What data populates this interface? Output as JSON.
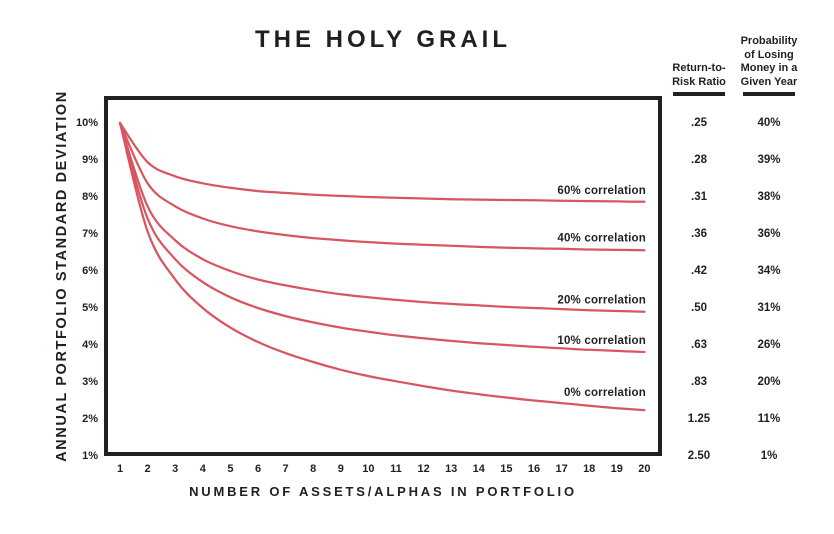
{
  "title": "THE HOLY GRAIL",
  "chart_data": {
    "type": "line",
    "title": "THE HOLY GRAIL",
    "xlabel": "NUMBER OF ASSETS/ALPHAS IN PORTFOLIO",
    "ylabel": "ANNUAL PORTFOLIO STANDARD DEVIATION",
    "x": [
      1,
      2,
      3,
      4,
      5,
      6,
      7,
      8,
      9,
      10,
      11,
      12,
      13,
      14,
      15,
      16,
      17,
      18,
      19,
      20
    ],
    "x_tick_labels": [
      "1",
      "2",
      "3",
      "4",
      "5",
      "6",
      "7",
      "8",
      "9",
      "10",
      "11",
      "12",
      "13",
      "14",
      "15",
      "16",
      "17",
      "18",
      "19",
      "20"
    ],
    "y_ticks": [
      {
        "label": "10%",
        "value": 10
      },
      {
        "label": "9%",
        "value": 9
      },
      {
        "label": "8%",
        "value": 8
      },
      {
        "label": "7%",
        "value": 7
      },
      {
        "label": "6%",
        "value": 6
      },
      {
        "label": "5%",
        "value": 5
      },
      {
        "label": "4%",
        "value": 4
      },
      {
        "label": "3%",
        "value": 3
      },
      {
        "label": "2%",
        "value": 2
      },
      {
        "label": "1%",
        "value": 1
      }
    ],
    "ylim": [
      1,
      10
    ],
    "xlim": [
      1,
      20
    ],
    "grid": false,
    "legend_position": "inline-right-of-each-line",
    "line_color": "#d8565f",
    "series": [
      {
        "name": "60% correlation",
        "correlation": 0.6,
        "label_dy": 12,
        "values": [
          10.0,
          8.94,
          8.56,
          8.37,
          8.25,
          8.16,
          8.11,
          8.06,
          8.03,
          8.0,
          7.98,
          7.96,
          7.94,
          7.93,
          7.92,
          7.91,
          7.9,
          7.89,
          7.88,
          7.87
        ]
      },
      {
        "name": "40% correlation",
        "correlation": 0.4,
        "label_dy": 13,
        "values": [
          10.0,
          8.37,
          7.75,
          7.42,
          7.21,
          7.07,
          6.97,
          6.89,
          6.83,
          6.78,
          6.74,
          6.71,
          6.68,
          6.65,
          6.63,
          6.61,
          6.6,
          6.58,
          6.57,
          6.56
        ]
      },
      {
        "name": "20% correlation",
        "correlation": 0.2,
        "label_dy": 12,
        "values": [
          10.0,
          7.75,
          6.83,
          6.32,
          6.0,
          5.77,
          5.61,
          5.48,
          5.37,
          5.29,
          5.22,
          5.16,
          5.11,
          5.07,
          5.03,
          5.0,
          4.97,
          4.94,
          4.92,
          4.9
        ]
      },
      {
        "name": "10% correlation",
        "correlation": 0.1,
        "label_dy": 12,
        "values": [
          10.0,
          7.42,
          6.32,
          5.7,
          5.29,
          5.0,
          4.78,
          4.61,
          4.47,
          4.36,
          4.26,
          4.18,
          4.11,
          4.05,
          4.0,
          3.95,
          3.91,
          3.87,
          3.84,
          3.81
        ]
      },
      {
        "name": "0% correlation",
        "correlation": 0.0,
        "label_dy": 18,
        "values": [
          10.0,
          7.07,
          5.77,
          5.0,
          4.47,
          4.08,
          3.78,
          3.54,
          3.33,
          3.16,
          3.02,
          2.89,
          2.77,
          2.67,
          2.58,
          2.5,
          2.43,
          2.36,
          2.29,
          2.24
        ]
      }
    ]
  },
  "side_table": {
    "columns": [
      {
        "header_lines": [
          "Return-to-",
          "Risk Ratio"
        ],
        "values": [
          ".25",
          ".28",
          ".31",
          ".36",
          ".42",
          ".50",
          ".63",
          ".83",
          "1.25",
          "2.50"
        ]
      },
      {
        "header_lines": [
          "Probability",
          "of Losing",
          "Money in a",
          "Given Year"
        ],
        "values": [
          "40%",
          "39%",
          "38%",
          "36%",
          "34%",
          "31%",
          "26%",
          "20%",
          "11%",
          "1%"
        ]
      }
    ]
  },
  "colors": {
    "ink": "#231f20",
    "curve": "#d8565f",
    "background": "#ffffff"
  }
}
